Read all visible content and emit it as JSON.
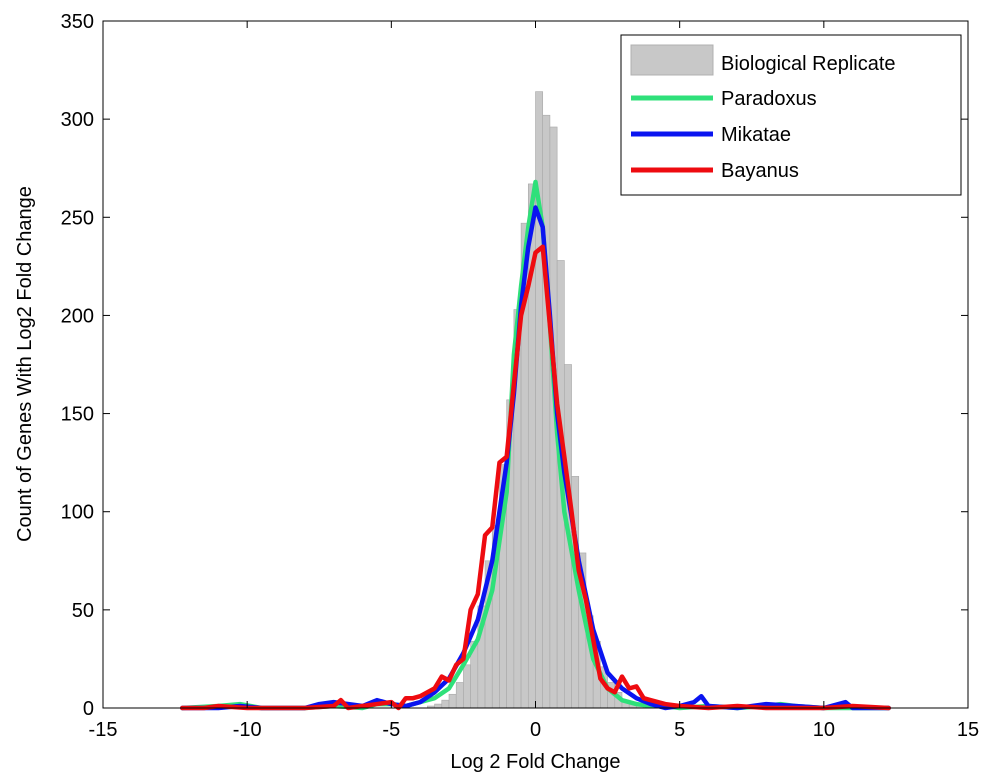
{
  "chart_data": {
    "type": "histogram-with-lines",
    "title": "",
    "xlabel": "Log 2 Fold Change",
    "ylabel": "Count of Genes With Log2 Fold Change",
    "xlim": [
      -15,
      15
    ],
    "ylim": [
      0,
      350
    ],
    "xticks": [
      -15,
      -10,
      -5,
      0,
      5,
      10,
      15
    ],
    "yticks": [
      0,
      50,
      100,
      150,
      200,
      250,
      300,
      350
    ],
    "grid": false,
    "legend_position": "top-right",
    "histogram": {
      "name": "Biological Replicate",
      "color": "#c8c8c8",
      "bin_width": 0.25,
      "bin_centers": [
        -3.625,
        -3.375,
        -3.125,
        -2.875,
        -2.625,
        -2.375,
        -2.125,
        -1.875,
        -1.625,
        -1.375,
        -1.125,
        -0.875,
        -0.625,
        -0.375,
        -0.125,
        0.125,
        0.375,
        0.625,
        0.875,
        1.125,
        1.375,
        1.625,
        1.875,
        2.125,
        2.375,
        2.625,
        2.875,
        3.125,
        3.375,
        3.625
      ],
      "values": [
        1,
        2,
        4,
        7,
        13,
        22,
        34,
        52,
        75,
        93,
        124,
        157,
        203,
        247,
        267,
        314,
        302,
        296,
        228,
        175,
        118,
        79,
        47,
        34,
        21,
        13,
        8,
        4,
        2,
        1
      ]
    },
    "series": [
      {
        "name": "Paradoxus",
        "color": "#2fe07a",
        "x": [
          -12.25,
          -11,
          -10.25,
          -9.5,
          -8,
          -7,
          -6,
          -5.5,
          -5,
          -4.5,
          -4,
          -3.5,
          -3,
          -2.5,
          -2,
          -1.5,
          -1,
          -0.75,
          -0.5,
          -0.25,
          0,
          0.25,
          0.5,
          0.75,
          1,
          1.5,
          2,
          2.5,
          3,
          3.5,
          4,
          4.5,
          5,
          6,
          7,
          8,
          8.5,
          9,
          10,
          11,
          12.25
        ],
        "y": [
          0,
          1,
          2,
          0,
          0,
          1,
          0,
          2,
          2,
          1,
          3,
          5,
          10,
          22,
          35,
          60,
          110,
          180,
          215,
          245,
          268,
          245,
          195,
          140,
          100,
          60,
          25,
          10,
          4,
          2,
          1,
          1,
          0,
          1,
          0,
          1,
          2,
          1,
          0,
          0,
          0
        ]
      },
      {
        "name": "Mikatae",
        "color": "#0a14f0",
        "x": [
          -12.25,
          -11,
          -10.25,
          -9.5,
          -8,
          -7.5,
          -7,
          -6,
          -5.5,
          -5,
          -4.5,
          -4,
          -3.5,
          -3,
          -2.5,
          -2,
          -1.5,
          -1,
          -0.75,
          -0.5,
          -0.25,
          0,
          0.25,
          0.5,
          0.75,
          1,
          1.5,
          2,
          2.5,
          3,
          3.5,
          4,
          4.5,
          5,
          5.5,
          5.75,
          6,
          7,
          8,
          9,
          10,
          10.75,
          11,
          12.25
        ],
        "y": [
          0,
          0,
          1,
          0,
          0,
          2,
          3,
          1,
          4,
          2,
          1,
          3,
          8,
          15,
          28,
          45,
          75,
          125,
          160,
          205,
          235,
          255,
          245,
          200,
          150,
          120,
          75,
          40,
          18,
          10,
          5,
          2,
          0,
          1,
          3,
          6,
          1,
          0,
          2,
          1,
          0,
          3,
          0,
          0
        ]
      },
      {
        "name": "Bayanus",
        "color": "#ee0b10",
        "x": [
          -12.25,
          -11.5,
          -11,
          -10,
          -9,
          -8,
          -7,
          -6.75,
          -6.5,
          -6,
          -5.5,
          -5,
          -4.75,
          -4.5,
          -4.25,
          -4,
          -3.5,
          -3.25,
          -3,
          -2.75,
          -2.5,
          -2.25,
          -2,
          -1.75,
          -1.5,
          -1.25,
          -1,
          -0.75,
          -0.5,
          -0.25,
          0,
          0.25,
          0.5,
          0.75,
          1,
          1.25,
          1.5,
          1.75,
          2,
          2.25,
          2.5,
          2.75,
          3,
          3.25,
          3.5,
          3.75,
          4,
          4.5,
          5,
          6,
          7,
          8,
          9,
          10,
          11,
          12.25
        ],
        "y": [
          0,
          0,
          1,
          0,
          0,
          0,
          1,
          4,
          0,
          1,
          2,
          3,
          0,
          5,
          5,
          6,
          10,
          16,
          14,
          22,
          25,
          50,
          58,
          88,
          92,
          125,
          128,
          165,
          200,
          215,
          232,
          235,
          195,
          155,
          128,
          100,
          70,
          55,
          35,
          15,
          10,
          8,
          16,
          10,
          11,
          5,
          4,
          2,
          1,
          0,
          1,
          0,
          0,
          0,
          1,
          0
        ]
      }
    ]
  }
}
